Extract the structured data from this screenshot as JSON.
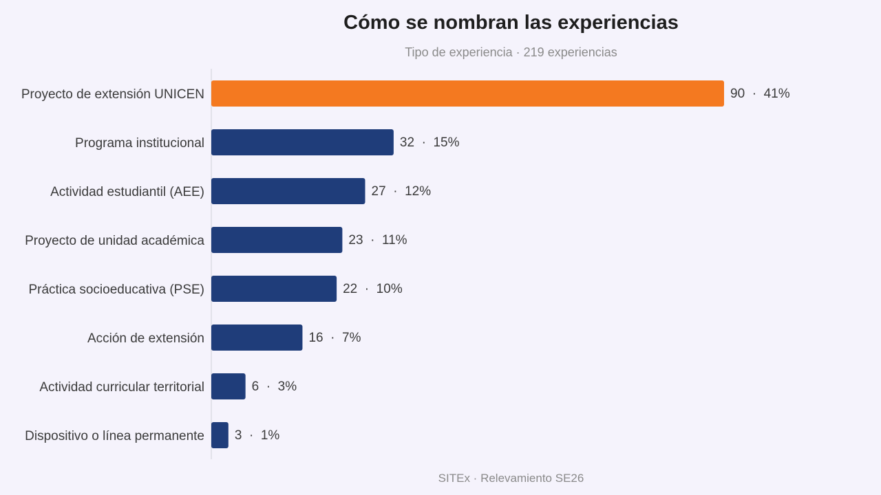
{
  "chart_data": {
    "type": "bar",
    "orientation": "horizontal",
    "title": "Cómo se nombran las experiencias",
    "subtitle": "Tipo de experiencia · 219 experiencias",
    "categories": [
      "Proyecto de extensión UNICEN",
      "Programa institucional",
      "Actividad estudiantil (AEE)",
      "Proyecto de unidad académica",
      "Práctica socioeducativa (PSE)",
      "Acción de extensión",
      "Actividad curricular territorial",
      "Dispositivo o línea permanente"
    ],
    "values": [
      90,
      32,
      27,
      23,
      22,
      16,
      6,
      3
    ],
    "data_labels": [
      "90  ·  41%",
      "32  ·  15%",
      "27  ·  12%",
      "23  ·  11%",
      "22  ·  10%",
      "16  ·  7%",
      "6  ·  3%",
      "3  ·  1%"
    ],
    "xlim": [
      0,
      90
    ],
    "grid": false,
    "highlight_index": 0,
    "colors": {
      "highlight": "#f47920",
      "default": "#1f3d7a",
      "axis": "#d0d0d8",
      "background": "#f5f3fc"
    }
  },
  "footer": "SITEx · Relevamiento SE26"
}
